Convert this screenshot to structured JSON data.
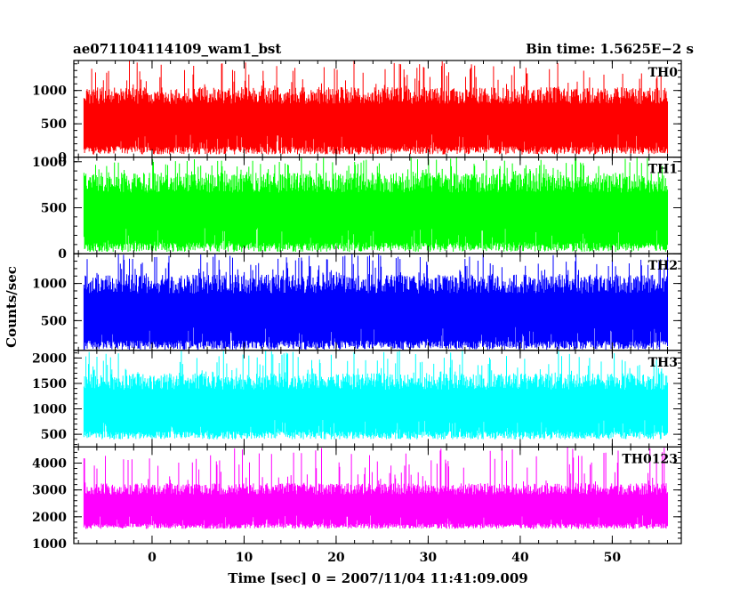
{
  "chart_data": {
    "type": "line",
    "title_left": "ae071104114109_wam1_bst",
    "title_right": "Bin time: 1.5625E−2 s",
    "xlabel": "Time [sec] 0 = 2007/11/04 11:41:09.009",
    "ylabel": "Counts/sec",
    "xlim": [
      -8.5,
      57.5
    ],
    "data_x_range": [
      -7.4,
      56.0
    ],
    "x_ticks": [
      0,
      10,
      20,
      30,
      40,
      50
    ],
    "x_tick_labels": [
      "0",
      "10",
      "20",
      "30",
      "40",
      "50"
    ],
    "x_minor_step": 2,
    "grid": false,
    "panels": [
      {
        "name": "TH0",
        "color": "#ff0000",
        "ylim": [
          0,
          1450
        ],
        "y_ticks": [
          0,
          500,
          1000
        ],
        "y_tick_labels": [
          "0",
          "500",
          "1000"
        ],
        "level_low": 40,
        "level_high": 1050,
        "spike_max": 1450
      },
      {
        "name": "TH1",
        "color": "#00ff00",
        "ylim": [
          0,
          1050
        ],
        "y_ticks": [
          0,
          500,
          1000
        ],
        "y_tick_labels": [
          "0",
          "500",
          "1000"
        ],
        "level_low": 20,
        "level_high": 880,
        "spike_max": 1050
      },
      {
        "name": "TH2",
        "color": "#0000ff",
        "ylim": [
          100,
          1400
        ],
        "y_ticks": [
          500,
          1000
        ],
        "y_tick_labels": [
          "500",
          "1000"
        ],
        "level_low": 110,
        "level_high": 1120,
        "spike_max": 1400
      },
      {
        "name": "TH3",
        "color": "#00ffff",
        "ylim": [
          250,
          2150
        ],
        "y_ticks": [
          500,
          1000,
          1500,
          2000
        ],
        "y_tick_labels": [
          "500",
          "1000",
          "1500",
          "2000"
        ],
        "level_low": 400,
        "level_high": 1700,
        "spike_max": 2150
      },
      {
        "name": "TH0123",
        "color": "#ff00ff",
        "ylim": [
          1000,
          4600
        ],
        "y_ticks": [
          1000,
          2000,
          3000,
          4000
        ],
        "y_tick_labels": [
          "1000",
          "2000",
          "3000",
          "4000"
        ],
        "level_low": 1550,
        "level_high": 3250,
        "spike_max": 4600
      }
    ]
  }
}
